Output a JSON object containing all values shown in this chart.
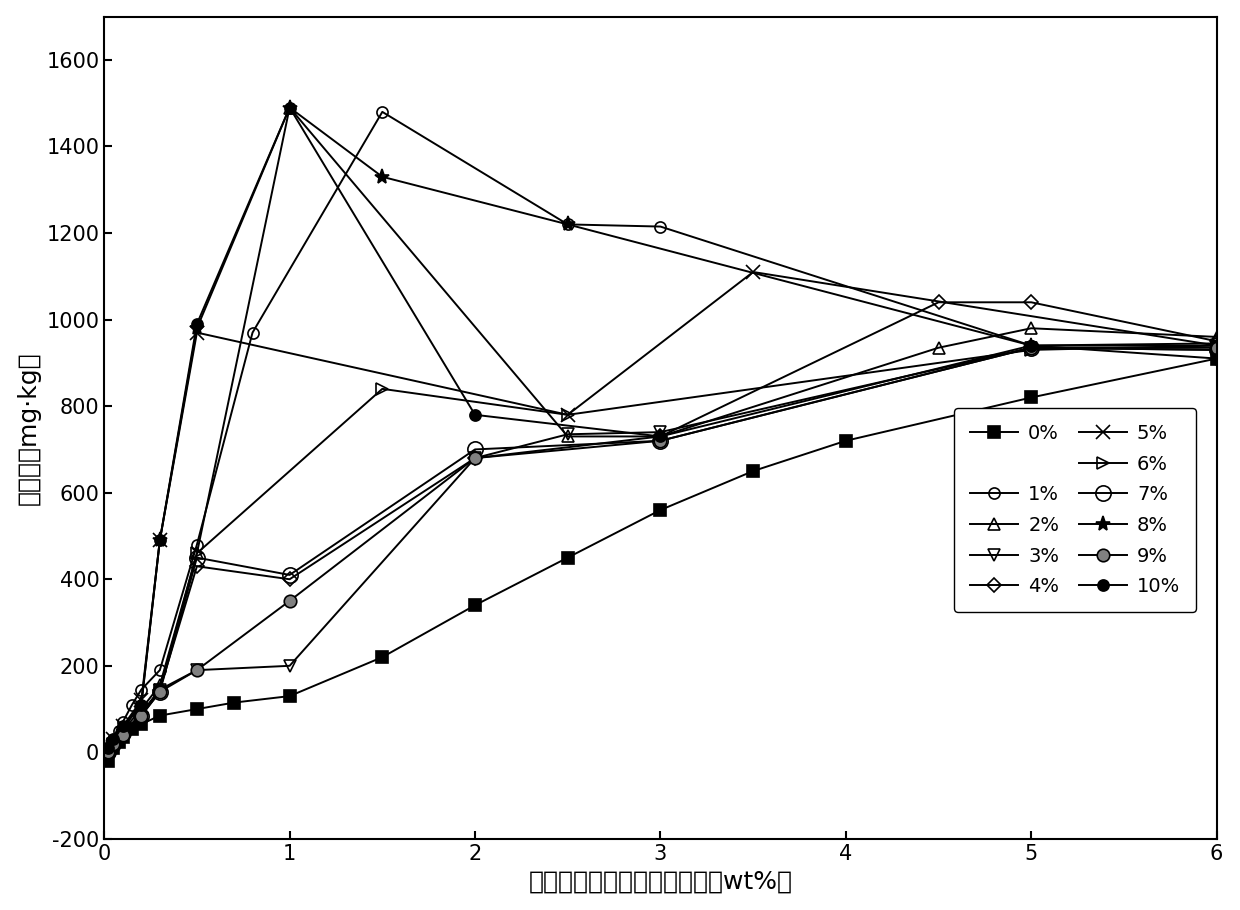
{
  "xlabel": "改性材料中聚合氯化铝含量（wt%）",
  "ylabel": "吸附量（mg·kg）",
  "xlim": [
    0,
    6
  ],
  "ylim": [
    -200,
    1700
  ],
  "xticks": [
    0,
    1,
    2,
    3,
    4,
    5,
    6
  ],
  "yticks": [
    -200,
    0,
    200,
    400,
    600,
    800,
    1000,
    1200,
    1400,
    1600
  ],
  "series": [
    {
      "label": "0%",
      "marker": "s",
      "mfc": "black",
      "markersize": 8,
      "x": [
        0.02,
        0.05,
        0.08,
        0.1,
        0.15,
        0.2,
        0.3,
        0.5,
        0.7,
        1.0,
        1.5,
        2.0,
        2.5,
        3.0,
        3.5,
        4.0,
        5.0,
        6.0
      ],
      "y": [
        -20,
        10,
        25,
        35,
        55,
        65,
        85,
        100,
        115,
        130,
        220,
        340,
        450,
        560,
        650,
        720,
        820,
        910
      ]
    },
    {
      "label": "1%",
      "marker": "o",
      "mfc": "none",
      "markersize": 8,
      "x": [
        0.02,
        0.05,
        0.08,
        0.1,
        0.15,
        0.2,
        0.3,
        0.5,
        0.8,
        1.5,
        2.5,
        3.0,
        5.0,
        6.0
      ],
      "y": [
        5,
        25,
        50,
        70,
        110,
        145,
        190,
        480,
        970,
        1480,
        1220,
        1215,
        940,
        945
      ]
    },
    {
      "label": "2%",
      "marker": "^",
      "mfc": "none",
      "markersize": 9,
      "x": [
        0.02,
        0.05,
        0.1,
        0.2,
        0.3,
        0.5,
        1.0,
        2.5,
        3.0,
        4.5,
        5.0,
        6.0
      ],
      "y": [
        5,
        20,
        50,
        100,
        155,
        460,
        1490,
        730,
        730,
        935,
        980,
        960
      ]
    },
    {
      "label": "3%",
      "marker": "v",
      "mfc": "none",
      "markersize": 9,
      "x": [
        0.02,
        0.05,
        0.1,
        0.2,
        0.3,
        0.5,
        1.0,
        2.0,
        2.5,
        3.0,
        5.0,
        6.0
      ],
      "y": [
        0,
        20,
        40,
        90,
        145,
        190,
        200,
        680,
        735,
        740,
        935,
        930
      ]
    },
    {
      "label": "4%",
      "marker": "D",
      "mfc": "none",
      "markersize": 7,
      "x": [
        0.02,
        0.05,
        0.1,
        0.2,
        0.3,
        0.5,
        1.0,
        2.0,
        3.0,
        4.5,
        5.0,
        6.0
      ],
      "y": [
        0,
        20,
        45,
        90,
        145,
        430,
        400,
        680,
        730,
        1040,
        1040,
        950
      ]
    },
    {
      "label": "5%",
      "marker": "x",
      "mfc": "black",
      "markersize": 10,
      "x": [
        0.02,
        0.05,
        0.1,
        0.2,
        0.3,
        0.5,
        2.5,
        3.5,
        6.0
      ],
      "y": [
        5,
        30,
        60,
        120,
        490,
        970,
        780,
        1110,
        940
      ]
    },
    {
      "label": "6%",
      "marker": ">",
      "mfc": "none",
      "markersize": 8,
      "x": [
        0.02,
        0.05,
        0.1,
        0.2,
        0.3,
        0.5,
        1.5,
        2.5,
        5.0,
        6.0
      ],
      "y": [
        0,
        20,
        40,
        85,
        145,
        460,
        840,
        780,
        930,
        940
      ]
    },
    {
      "label": "7%",
      "marker": "o",
      "mfc": "none",
      "markersize": 11,
      "x": [
        0.02,
        0.05,
        0.1,
        0.2,
        0.3,
        0.5,
        1.0,
        2.0,
        3.0,
        5.0,
        6.0
      ],
      "y": [
        0,
        20,
        45,
        85,
        140,
        450,
        410,
        700,
        720,
        935,
        930
      ]
    },
    {
      "label": "8%",
      "marker": "*",
      "mfc": "black",
      "markersize": 11,
      "x": [
        0.02,
        0.05,
        0.1,
        0.2,
        0.3,
        0.5,
        1.0,
        1.5,
        2.5,
        5.0,
        6.0
      ],
      "y": [
        5,
        25,
        55,
        110,
        490,
        980,
        1490,
        1330,
        1220,
        940,
        940
      ]
    },
    {
      "label": "9%",
      "marker": "o",
      "mfc": "gray",
      "markersize": 9,
      "x": [
        0.02,
        0.05,
        0.1,
        0.2,
        0.3,
        0.5,
        1.0,
        2.0,
        3.0,
        5.0,
        6.0
      ],
      "y": [
        0,
        20,
        40,
        85,
        140,
        190,
        350,
        680,
        720,
        935,
        935
      ]
    },
    {
      "label": "10%",
      "marker": "o",
      "mfc": "black",
      "markersize": 8,
      "x": [
        0.02,
        0.05,
        0.1,
        0.2,
        0.3,
        0.5,
        1.0,
        2.0,
        3.0,
        5.0,
        6.0
      ],
      "y": [
        10,
        30,
        60,
        110,
        490,
        990,
        1490,
        780,
        730,
        940,
        910
      ]
    }
  ],
  "font_size_label": 18,
  "font_size_tick": 15,
  "font_size_legend": 14
}
